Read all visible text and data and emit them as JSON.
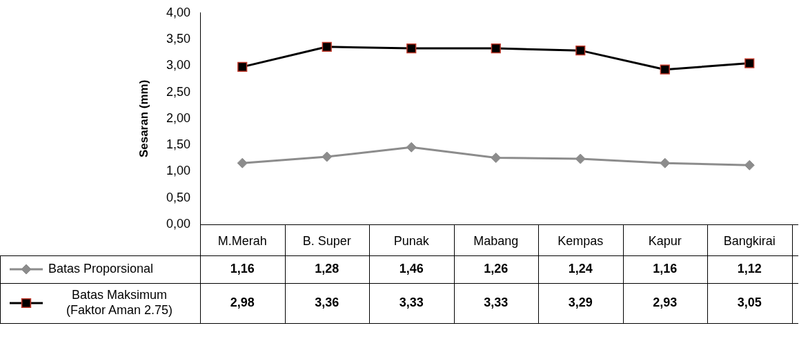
{
  "chart_data": {
    "type": "line",
    "ylabel": "Sesaran (mm)",
    "categories": [
      "M.Merah",
      "B. Super",
      "Punak",
      "Mabang",
      "Kempas",
      "Kapur",
      "Bangkirai"
    ],
    "ylim": [
      0,
      4
    ],
    "yticks": [
      {
        "value": 0,
        "label": "0,00"
      },
      {
        "value": 0.5,
        "label": "0,50"
      },
      {
        "value": 1,
        "label": "1,00"
      },
      {
        "value": 1.5,
        "label": "1,50"
      },
      {
        "value": 2,
        "label": "2,00"
      },
      {
        "value": 2.5,
        "label": "2,50"
      },
      {
        "value": 3,
        "label": "3,00"
      },
      {
        "value": 3.5,
        "label": "3,50"
      },
      {
        "value": 4,
        "label": "4,00"
      }
    ],
    "grid": false,
    "legend": "bottom",
    "line_style": "solid",
    "series": [
      {
        "name": "Batas Proporsional",
        "color": "#8c8c8c",
        "marker": "diamond",
        "values": [
          1.16,
          1.28,
          1.46,
          1.26,
          1.24,
          1.16,
          1.12
        ],
        "value_labels": [
          "1,16",
          "1,28",
          "1,46",
          "1,26",
          "1,24",
          "1,16",
          "1,12"
        ]
      },
      {
        "name": "Batas Maksimum (Faktor Aman 2.75)",
        "color": "#000000",
        "marker": "square",
        "values": [
          2.98,
          3.36,
          3.33,
          3.33,
          3.29,
          2.93,
          3.05
        ],
        "value_labels": [
          "2,98",
          "3,36",
          "3,33",
          "3,33",
          "3,29",
          "2,93",
          "3,05"
        ]
      }
    ]
  }
}
